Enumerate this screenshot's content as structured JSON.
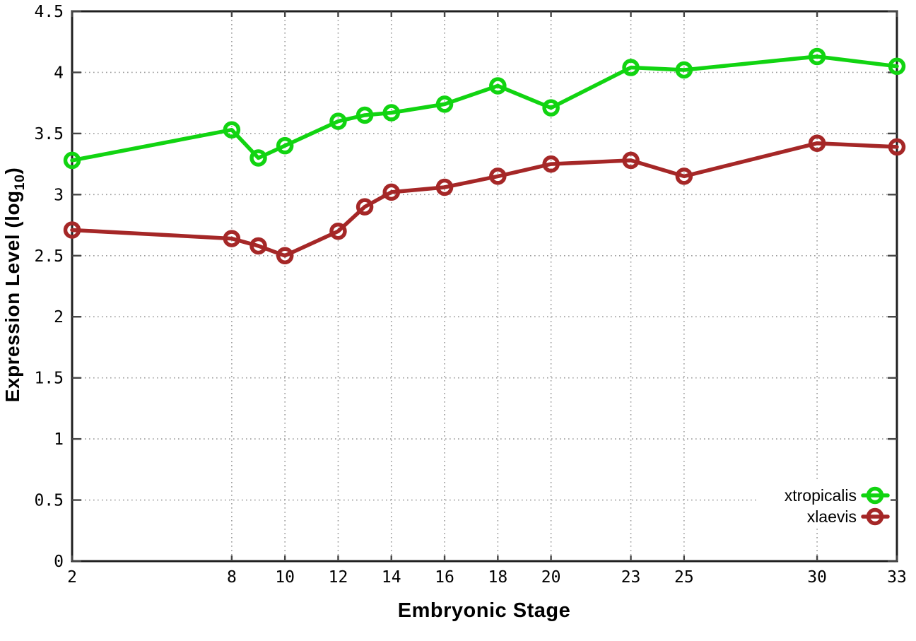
{
  "page": {
    "background": "#ffffff"
  },
  "labels": {
    "ylabel_main": "Expression Level (log",
    "ylabel_sub": "10",
    "ylabel_close": ")"
  },
  "chart_data": {
    "type": "line",
    "title": "",
    "xlabel": "Embryonic Stage",
    "ylabel": "Expression Level (log10)",
    "x": [
      2,
      8,
      9,
      10,
      12,
      13,
      14,
      16,
      18,
      20,
      23,
      25,
      30,
      33
    ],
    "series": [
      {
        "name": "xtropicalis",
        "color": "#11d411",
        "values": [
          3.28,
          3.53,
          3.3,
          3.4,
          3.6,
          3.65,
          3.67,
          3.74,
          3.89,
          3.71,
          4.04,
          4.02,
          4.13,
          4.05
        ]
      },
      {
        "name": "xlaevis",
        "color": "#a52727",
        "values": [
          2.71,
          2.64,
          2.58,
          2.5,
          2.7,
          2.9,
          3.02,
          3.06,
          3.15,
          3.25,
          3.28,
          3.15,
          3.42,
          3.39
        ]
      }
    ],
    "xlim": [
      2,
      33
    ],
    "ylim": [
      0,
      4.5
    ],
    "x_ticks": [
      2,
      8,
      10,
      12,
      14,
      16,
      18,
      20,
      23,
      25,
      30,
      33
    ],
    "y_ticks": [
      0,
      0.5,
      1,
      1.5,
      2,
      2.5,
      3,
      3.5,
      4,
      4.5
    ],
    "grid": true,
    "marker": "open-circle",
    "legend_position": "inside-bottom-right",
    "colors": {
      "grid": "#9a9a9a",
      "axis": "#1f1f1f",
      "tick": "#444444",
      "text": "#000000"
    }
  }
}
